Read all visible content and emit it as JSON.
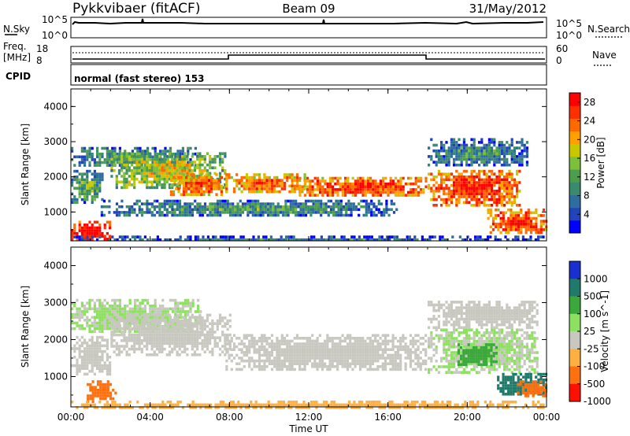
{
  "header": {
    "station": "Pykkvibaer (fitACF)",
    "beam": "Beam 09",
    "date": "31/May/2012"
  },
  "top_panels": {
    "nsky_label": "N.Sky",
    "nsky_ticks": [
      "10^5",
      "10^0"
    ],
    "nsearch_label": "N.Search",
    "nsearch_ticks": [
      "10^5",
      "10^0"
    ],
    "freq_label": "Freq.",
    "freq_unit": "[MHz]",
    "freq_ticks": [
      "18",
      "8"
    ],
    "nave_label": "Nave",
    "nave_ticks": [
      "60",
      "0"
    ],
    "cpid_label": "CPID",
    "cpid_text": "normal (fast stereo) 153"
  },
  "chart_data": [
    {
      "type": "heatmap",
      "title": "",
      "ylabel": "Slant Range [km]",
      "xlabel": "",
      "x_ticks": [
        "00:00",
        "04:00",
        "08:00",
        "12:00",
        "16:00",
        "20:00",
        "00:00"
      ],
      "x_range_hours": [
        0,
        24
      ],
      "y_ticks": [
        1000,
        2000,
        3000,
        4000
      ],
      "ylim": [
        180,
        4500
      ],
      "colorbar_label": "Power [dB]",
      "colorbar_ticks": [
        "4",
        "8",
        "12",
        "16",
        "20",
        "24",
        "28"
      ],
      "colorbar_range": [
        0,
        30
      ],
      "colors": [
        "#0000ff",
        "#2244bb",
        "#2e6e9e",
        "#3a8a6e",
        "#4c9e4c",
        "#7cbf3a",
        "#c8c800",
        "#ffa000",
        "#ff6a00",
        "#ff3000",
        "#ff0000"
      ],
      "bands": [
        {
          "h0": 0.0,
          "h1": 6.3,
          "r0": 2300,
          "r1": 2850,
          "intensity": 0.3
        },
        {
          "h0": 0.0,
          "h1": 1.6,
          "r0": 1300,
          "r1": 2200,
          "intensity": 0.35
        },
        {
          "h0": 0.0,
          "h1": 2.0,
          "r0": 200,
          "r1": 750,
          "intensity": 0.95
        },
        {
          "h0": 2.0,
          "h1": 7.8,
          "r0": 1700,
          "r1": 2700,
          "intensity": 0.5
        },
        {
          "h0": 5.0,
          "h1": 8.0,
          "r0": 1500,
          "r1": 2100,
          "intensity": 0.75
        },
        {
          "h0": 7.8,
          "h1": 11.8,
          "r0": 1550,
          "r1": 2100,
          "intensity": 0.72
        },
        {
          "h0": 11.5,
          "h1": 17.9,
          "r0": 1450,
          "r1": 2000,
          "intensity": 0.8
        },
        {
          "h0": 18.0,
          "h1": 22.7,
          "r0": 1200,
          "r1": 2200,
          "intensity": 0.82
        },
        {
          "h0": 18.0,
          "h1": 23.0,
          "r0": 2300,
          "r1": 3100,
          "intensity": 0.25
        },
        {
          "h0": 21.0,
          "h1": 24.0,
          "r0": 400,
          "r1": 1100,
          "intensity": 0.8
        },
        {
          "h0": 1.5,
          "h1": 16.5,
          "r0": 900,
          "r1": 1350,
          "intensity": 0.28
        },
        {
          "h0": 0.0,
          "h1": 24.0,
          "r0": 180,
          "r1": 330,
          "intensity": 0.2
        }
      ]
    },
    {
      "type": "heatmap",
      "title": "",
      "ylabel": "Slant Range [km]",
      "xlabel": "Time UT",
      "x_ticks": [
        "00:00",
        "04:00",
        "08:00",
        "12:00",
        "16:00",
        "20:00",
        "00:00"
      ],
      "x_range_hours": [
        0,
        24
      ],
      "y_ticks": [
        1000,
        2000,
        3000,
        4000
      ],
      "ylim": [
        180,
        4500
      ],
      "colorbar_label": "Velocity [m s^-1]",
      "colorbar_ticks": [
        "1000",
        "500",
        "100",
        "25",
        "-25",
        "-100",
        "-500",
        "-1000"
      ],
      "colors": [
        "#1830d0",
        "#1f7a6a",
        "#3aa83a",
        "#8ee060",
        "#c8c8c0",
        "#ffb040",
        "#ff7010",
        "#ff1000"
      ],
      "bands": [
        {
          "h0": 0.0,
          "h1": 6.5,
          "r0": 2200,
          "r1": 3100,
          "value": 25
        },
        {
          "h0": 0.0,
          "h1": 2.0,
          "r0": 1100,
          "r1": 2100,
          "value": -25
        },
        {
          "h0": 2.0,
          "h1": 8.0,
          "r0": 1600,
          "r1": 2700,
          "value": -25
        },
        {
          "h0": 7.8,
          "h1": 17.9,
          "r0": 1200,
          "r1": 2150,
          "value": -25
        },
        {
          "h0": 18.0,
          "h1": 23.5,
          "r0": 1150,
          "r1": 2300,
          "value": 25
        },
        {
          "h0": 18.0,
          "h1": 23.5,
          "r0": 2350,
          "r1": 3050,
          "value": -25
        },
        {
          "h0": 0.8,
          "h1": 2.2,
          "r0": 350,
          "r1": 900,
          "value": -600
        },
        {
          "h0": 21.5,
          "h1": 24.0,
          "r0": 500,
          "r1": 1100,
          "value": 600
        },
        {
          "h0": 22.5,
          "h1": 24.0,
          "r0": 500,
          "r1": 900,
          "value": -700
        },
        {
          "h0": 19.5,
          "h1": 21.5,
          "r0": 1300,
          "r1": 1900,
          "value": 150
        },
        {
          "h0": 0.0,
          "h1": 24.0,
          "r0": 180,
          "r1": 350,
          "value": -150
        }
      ]
    }
  ]
}
